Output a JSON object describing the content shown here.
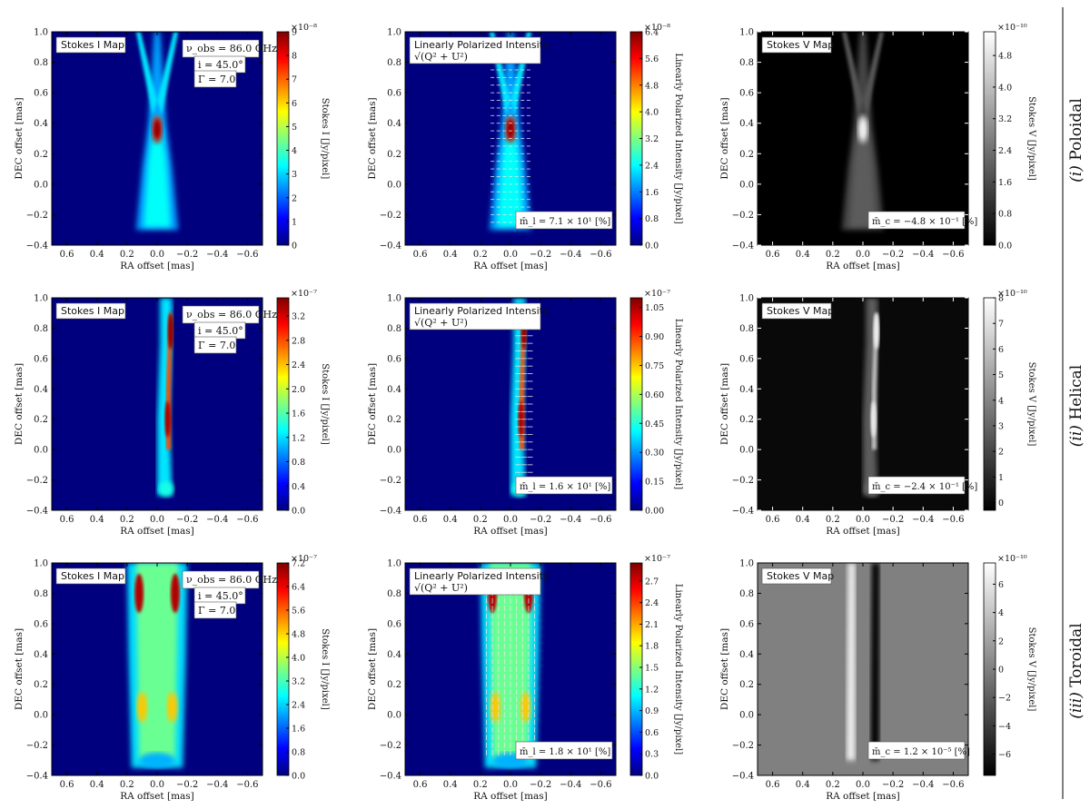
{
  "chart_data": [
    {
      "type": "heatmap",
      "row": "poloidal",
      "kind": "I",
      "title": "Stokes I Map",
      "xlabel": "RA offset [mas]",
      "ylabel": "DEC offset [mas]",
      "xlim": [
        0.7,
        -0.7
      ],
      "ylim": [
        -0.4,
        1.0
      ],
      "xticks": [
        "0.6",
        "0.4",
        "0.2",
        "0.0",
        "−0.2",
        "−0.4",
        "−0.6"
      ],
      "yticks": [
        "−0.4",
        "−0.2",
        "0.0",
        "0.2",
        "0.4",
        "0.6",
        "0.8",
        "1.0"
      ],
      "params": [
        "ν_obs = 86.0 GHz",
        "i = 45.0°",
        "Γ = 7.0"
      ],
      "colorbar": {
        "label": "Stokes I [Jy/pixel]",
        "scale": "×10⁻⁸",
        "ticks": [
          "0",
          "1",
          "2",
          "3",
          "4",
          "5",
          "6",
          "7",
          "8",
          "9"
        ],
        "range": [
          0,
          9
        ],
        "colormap": "jet"
      },
      "peak": {
        "ra": 0.0,
        "dec": 0.36
      }
    },
    {
      "type": "heatmap",
      "row": "poloidal",
      "kind": "LP",
      "title": "Linearly Polarized Intensity",
      "subtitle": "√(Q² + U²)",
      "xlabel": "RA offset [mas]",
      "ylabel": "DEC offset [mas]",
      "xlim": [
        0.7,
        -0.7
      ],
      "ylim": [
        -0.4,
        1.0
      ],
      "xticks": [
        "0.6",
        "0.4",
        "0.2",
        "0.0",
        "−0.2",
        "−0.4",
        "−0.6"
      ],
      "yticks": [
        "−0.4",
        "−0.2",
        "0.0",
        "0.2",
        "0.4",
        "0.6",
        "0.8",
        "1.0"
      ],
      "mean_label": "m̄_l = 7.1 × 10¹ [%]",
      "colorbar": {
        "label": "Linearly Polarized Intensity [Jy/pixel]",
        "scale": "×10⁻⁸",
        "ticks": [
          "0.0",
          "0.8",
          "1.6",
          "2.4",
          "3.2",
          "4.0",
          "4.8",
          "5.6",
          "6.4"
        ],
        "range": [
          0,
          6.4
        ],
        "colormap": "jet"
      }
    },
    {
      "type": "heatmap",
      "row": "poloidal",
      "kind": "V",
      "title": "Stokes V Map",
      "xlabel": "RA offset [mas]",
      "ylabel": "DEC offset [mas]",
      "xlim": [
        0.7,
        -0.7
      ],
      "ylim": [
        -0.4,
        1.0
      ],
      "xticks": [
        "0.6",
        "0.4",
        "0.2",
        "0.0",
        "−0.2",
        "−0.4",
        "−0.6"
      ],
      "yticks": [
        "−0.4",
        "−0.2",
        "0.0",
        "0.2",
        "0.4",
        "0.6",
        "0.8",
        "1.0"
      ],
      "mean_label": "m̄_c = −4.8 × 10⁻¹ [%]",
      "colorbar": {
        "label": "Stokes V [Jy/pixel]",
        "scale": "×10⁻¹⁰",
        "ticks": [
          "0.0",
          "0.8",
          "1.6",
          "2.4",
          "3.2",
          "4.0",
          "4.8"
        ],
        "range": [
          0,
          5.4
        ],
        "colormap": "gray"
      }
    },
    {
      "type": "heatmap",
      "row": "helical",
      "kind": "I",
      "title": "Stokes I Map",
      "xlabel": "RA offset [mas]",
      "ylabel": "DEC offset [mas]",
      "xlim": [
        0.7,
        -0.7
      ],
      "ylim": [
        -0.4,
        1.0
      ],
      "xticks": [
        "0.6",
        "0.4",
        "0.2",
        "0.0",
        "−0.2",
        "−0.4",
        "−0.6"
      ],
      "yticks": [
        "−0.4",
        "−0.2",
        "0.0",
        "0.2",
        "0.4",
        "0.6",
        "0.8",
        "1.0"
      ],
      "params": [
        "ν_obs = 86.0 GHz",
        "i = 45.0°",
        "Γ = 7.0"
      ],
      "colorbar": {
        "label": "Stokes I [Jy/pixel]",
        "scale": "×10⁻⁷",
        "ticks": [
          "0.0",
          "0.4",
          "0.8",
          "1.2",
          "1.6",
          "2.0",
          "2.4",
          "2.8",
          "3.2"
        ],
        "range": [
          0,
          3.5
        ],
        "colormap": "jet"
      }
    },
    {
      "type": "heatmap",
      "row": "helical",
      "kind": "LP",
      "title": "Linearly Polarized Intensity",
      "subtitle": "√(Q² + U²)",
      "xlabel": "RA offset [mas]",
      "ylabel": "DEC offset [mas]",
      "xlim": [
        0.7,
        -0.7
      ],
      "ylim": [
        -0.4,
        1.0
      ],
      "xticks": [
        "0.6",
        "0.4",
        "0.2",
        "0.0",
        "−0.2",
        "−0.4",
        "−0.6"
      ],
      "yticks": [
        "−0.4",
        "−0.2",
        "0.0",
        "0.2",
        "0.4",
        "0.6",
        "0.8",
        "1.0"
      ],
      "mean_label": "m̄_l = 1.6 × 10¹ [%]",
      "colorbar": {
        "label": "Linearly Polarized Intensity [Jy/pixel]",
        "scale": "×10⁻⁷",
        "ticks": [
          "0.00",
          "0.15",
          "0.30",
          "0.45",
          "0.60",
          "0.75",
          "0.90",
          "1.05"
        ],
        "range": [
          0,
          1.1
        ],
        "colormap": "jet"
      }
    },
    {
      "type": "heatmap",
      "row": "helical",
      "kind": "V",
      "title": "Stokes V Map",
      "xlabel": "RA offset [mas]",
      "ylabel": "DEC offset [mas]",
      "xlim": [
        0.7,
        -0.7
      ],
      "ylim": [
        -0.4,
        1.0
      ],
      "xticks": [
        "0.6",
        "0.4",
        "0.2",
        "0.0",
        "−0.2",
        "−0.4",
        "−0.6"
      ],
      "yticks": [
        "−0.4",
        "−0.2",
        "0.0",
        "0.2",
        "0.4",
        "0.6",
        "0.8",
        "1.0"
      ],
      "mean_label": "m̄_c = −2.4 × 10⁻¹ [%]",
      "colorbar": {
        "label": "Stokes V [Jy/pixel]",
        "scale": "×10⁻¹⁰",
        "ticks": [
          "0",
          "1",
          "2",
          "3",
          "4",
          "5",
          "6",
          "7",
          "8"
        ],
        "range": [
          -0.3,
          8
        ],
        "colormap": "gray"
      }
    },
    {
      "type": "heatmap",
      "row": "toroidal",
      "kind": "I",
      "title": "Stokes I Map",
      "xlabel": "RA offset [mas]",
      "ylabel": "DEC offset [mas]",
      "xlim": [
        0.7,
        -0.7
      ],
      "ylim": [
        -0.4,
        1.0
      ],
      "xticks": [
        "0.6",
        "0.4",
        "0.2",
        "0.0",
        "−0.2",
        "−0.4",
        "−0.6"
      ],
      "yticks": [
        "−0.4",
        "−0.2",
        "0.0",
        "0.2",
        "0.4",
        "0.6",
        "0.8",
        "1.0"
      ],
      "params": [
        "ν_obs = 86.0 GHz",
        "i = 45.0°",
        "Γ = 7.0"
      ],
      "colorbar": {
        "label": "Stokes I [Jy/pixel]",
        "scale": "×10⁻⁷",
        "ticks": [
          "0.0",
          "0.8",
          "1.6",
          "2.4",
          "3.2",
          "4.0",
          "4.8",
          "5.6",
          "6.4",
          "7.2"
        ],
        "range": [
          0,
          7.2
        ],
        "colormap": "jet"
      }
    },
    {
      "type": "heatmap",
      "row": "toroidal",
      "kind": "LP",
      "title": "Linearly Polarized Intensity",
      "subtitle": "√(Q² + U²)",
      "xlabel": "RA offset [mas]",
      "ylabel": "DEC offset [mas]",
      "xlim": [
        0.7,
        -0.7
      ],
      "ylim": [
        -0.4,
        1.0
      ],
      "xticks": [
        "0.6",
        "0.4",
        "0.2",
        "0.0",
        "−0.2",
        "−0.4",
        "−0.6"
      ],
      "yticks": [
        "−0.4",
        "−0.2",
        "0.0",
        "0.2",
        "0.4",
        "0.6",
        "0.8",
        "1.0"
      ],
      "mean_label": "m̄_l = 1.8 × 10¹ [%]",
      "colorbar": {
        "label": "Linearly Polarized Intensity [Jy/pixel]",
        "scale": "×10⁻⁷",
        "ticks": [
          "0.0",
          "0.3",
          "0.6",
          "0.9",
          "1.2",
          "1.5",
          "1.8",
          "2.1",
          "2.4",
          "2.7"
        ],
        "range": [
          0,
          2.95
        ],
        "colormap": "jet"
      }
    },
    {
      "type": "heatmap",
      "row": "toroidal",
      "kind": "V",
      "title": "Stokes V Map",
      "xlabel": "RA offset [mas]",
      "ylabel": "DEC offset [mas]",
      "xlim": [
        0.7,
        -0.7
      ],
      "ylim": [
        -0.4,
        1.0
      ],
      "xticks": [
        "0.6",
        "0.4",
        "0.2",
        "0.0",
        "−0.2",
        "−0.4",
        "−0.6"
      ],
      "yticks": [
        "−0.4",
        "−0.2",
        "0.0",
        "0.2",
        "0.4",
        "0.6",
        "0.8",
        "1.0"
      ],
      "mean_label": "m̄_c = 1.2 × 10⁻⁵ [%]",
      "colorbar": {
        "label": "Stokes V [Jy/pixel]",
        "scale": "×10⁻¹⁰",
        "ticks": [
          "−6",
          "−4",
          "−2",
          "0",
          "2",
          "4",
          "6"
        ],
        "range": [
          -7.5,
          7.5
        ],
        "colormap": "gray"
      }
    }
  ],
  "row_labels": [
    {
      "numeral": "(i)",
      "name": "Poloidal"
    },
    {
      "numeral": "(ii)",
      "name": "Helical"
    },
    {
      "numeral": "(iii)",
      "name": "Toroidal"
    }
  ]
}
